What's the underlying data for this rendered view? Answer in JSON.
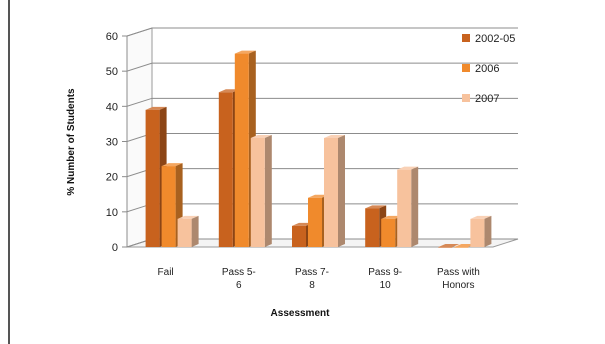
{
  "chart_data": {
    "type": "bar",
    "style": "3d-clustered-column",
    "categories": [
      [
        "Fail"
      ],
      [
        "Pass   5-",
        "6"
      ],
      [
        "Pass   7-",
        "8"
      ],
      [
        "Pass   9-",
        "10"
      ],
      [
        "Pass with",
        "Honors"
      ]
    ],
    "series": [
      {
        "name": "2002-05",
        "color": "#c8621e",
        "values": [
          39,
          44,
          6,
          11,
          0
        ]
      },
      {
        "name": "2006",
        "color": "#f08a2c",
        "values": [
          23,
          55,
          14,
          8,
          0
        ]
      },
      {
        "name": "2007",
        "color": "#f7c29d",
        "values": [
          8,
          31,
          31,
          22,
          8
        ]
      }
    ],
    "ylim": [
      0,
      60
    ],
    "yticks": [
      0,
      10,
      20,
      30,
      40,
      50,
      60
    ],
    "ylabel": "% Number of Students",
    "xlabel": "Assessment",
    "grid": true,
    "legend_position": "right"
  }
}
